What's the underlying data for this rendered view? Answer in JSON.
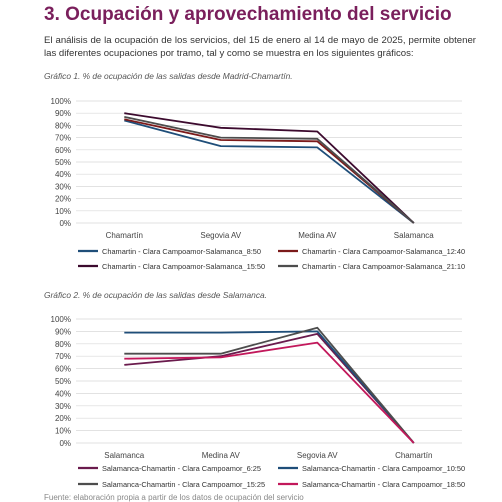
{
  "section_title": "3. Ocupación y aprovechamiento del servicio",
  "intro_text": "El análisis de la ocupación de los servicios, del 15 de enero al 14 de mayo de 2025, permite obtener las diferentes ocupaciones por tramo, tal y como se muestra en los siguientes gráficos:",
  "chart1_caption": "Gráfico 1. % de ocupación de las salidas desde Madrid-Chamartín.",
  "chart2_caption": "Gráfico 2. % de ocupación de las salidas desde Salamanca.",
  "footnote": "Fuente: elaboración propia a partir de los datos de ocupación del servicio",
  "chart_data": [
    {
      "type": "line",
      "categories": [
        "Chamartín",
        "Segovia AV",
        "Medina AV",
        "Salamanca"
      ],
      "y_ticks": [
        "0%",
        "10%",
        "20%",
        "30%",
        "40%",
        "50%",
        "60%",
        "70%",
        "80%",
        "90%",
        "100%"
      ],
      "ylim": [
        0,
        100
      ],
      "grid": true,
      "legend_position": "bottom",
      "series": [
        {
          "name": "Chamartin - Clara Campoamor-Salamanca_8:50",
          "color": "#1f4e79",
          "values": [
            84,
            63,
            62,
            0
          ]
        },
        {
          "name": "Chamartin - Clara Campoamor-Salamanca_12:40",
          "color": "#7b1a1a",
          "values": [
            85,
            68,
            67,
            0
          ]
        },
        {
          "name": "Chamartin - Clara Campoamor-Salamanca_15:50",
          "color": "#3c0a2e",
          "values": [
            90,
            78,
            75,
            0
          ]
        },
        {
          "name": "Chamartin - Clara Campoamor-Salamanca_21:10",
          "color": "#4d4d4d",
          "values": [
            87,
            70,
            69,
            0
          ]
        }
      ]
    },
    {
      "type": "line",
      "categories": [
        "Salamanca",
        "Medina AV",
        "Segovia AV",
        "Chamartín"
      ],
      "y_ticks": [
        "0%",
        "10%",
        "20%",
        "30%",
        "40%",
        "50%",
        "60%",
        "70%",
        "80%",
        "90%",
        "100%"
      ],
      "ylim": [
        0,
        100
      ],
      "grid": true,
      "legend_position": "bottom",
      "series": [
        {
          "name": "Salamanca-Chamartin - Clara Campoamor_6:25",
          "color": "#6a1b4d",
          "values": [
            63,
            70,
            88,
            0
          ]
        },
        {
          "name": "Salamanca-Chamartin - Clara Campoamor_10:50",
          "color": "#1f4e79",
          "values": [
            89,
            89,
            90,
            0
          ]
        },
        {
          "name": "Salamanca-Chamartin - Clara Campoamor_15:25",
          "color": "#4d4d4d",
          "values": [
            72,
            72,
            93,
            0
          ]
        },
        {
          "name": "Salamanca-Chamartin - Clara Campoamor_18:50",
          "color": "#c2185b",
          "values": [
            68,
            69,
            81,
            0
          ]
        }
      ]
    }
  ]
}
